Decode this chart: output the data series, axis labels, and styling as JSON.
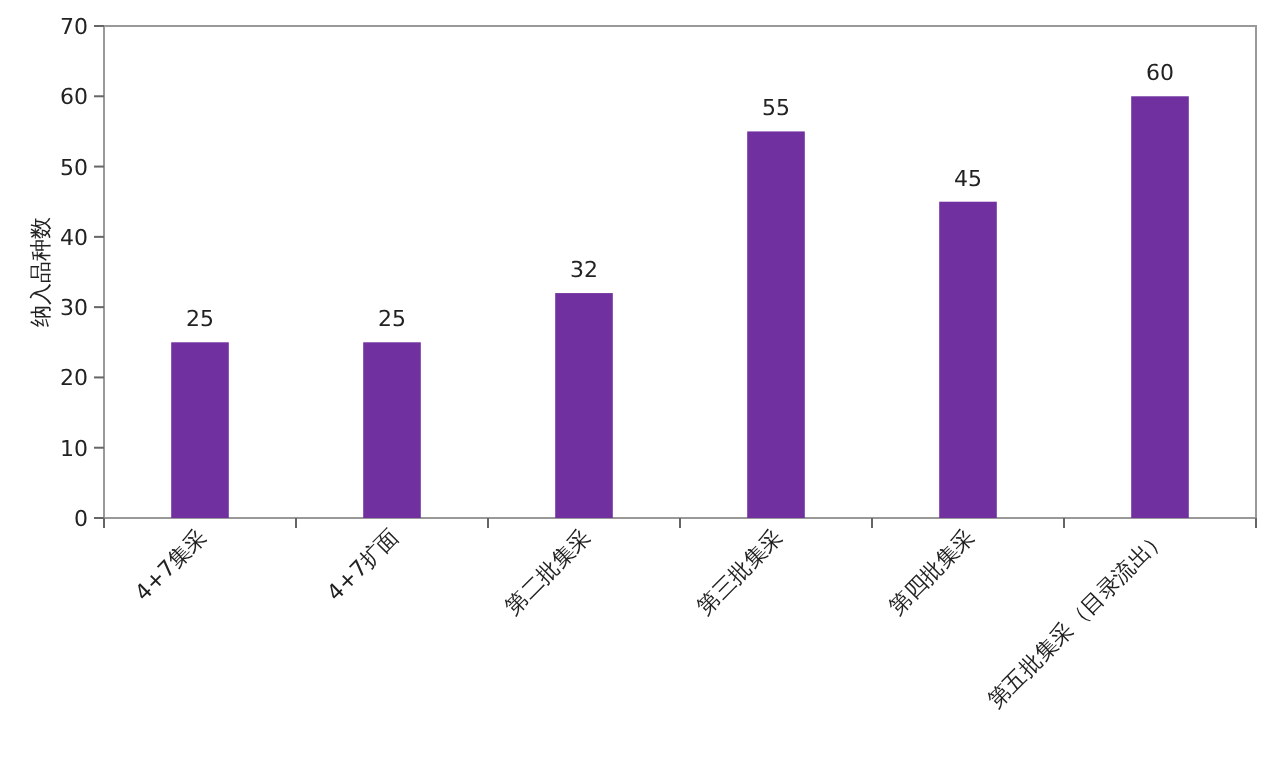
{
  "chart_data": {
    "type": "bar",
    "ylabel": "纳入品种数",
    "categories": [
      "4+7集采",
      "4+7扩面",
      "第二批集采",
      "第三批集采",
      "第四批集采",
      "第五批集采（目录流出）"
    ],
    "values": [
      25,
      25,
      32,
      55,
      45,
      60
    ],
    "color": "#7030a0",
    "ylim": [
      0,
      70
    ],
    "yticks": [
      0,
      10,
      20,
      30,
      40,
      50,
      60,
      70
    ],
    "data_labels": true
  }
}
